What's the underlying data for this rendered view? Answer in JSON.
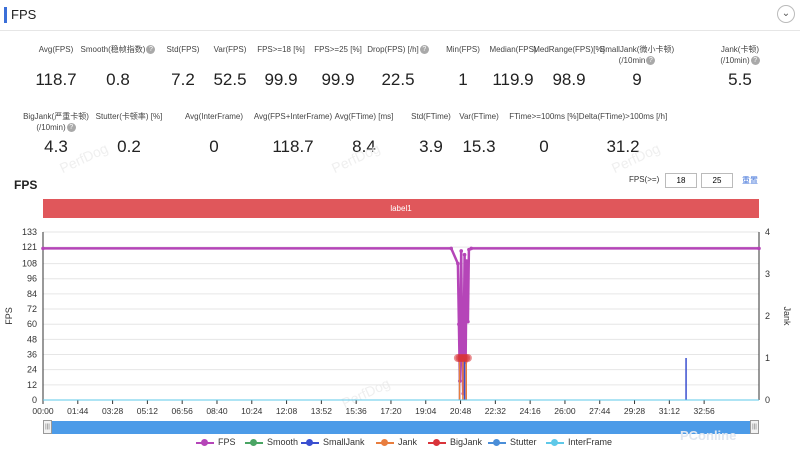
{
  "header": {
    "title": "FPS"
  },
  "metrics_row1": [
    {
      "label": "Avg(FPS)",
      "value": "118.7"
    },
    {
      "label": "Smooth(稳帧指数)",
      "value": "0.8",
      "help": true
    },
    {
      "label": "Std(FPS)",
      "value": "7.2"
    },
    {
      "label": "Var(FPS)",
      "value": "52.5"
    },
    {
      "label": "FPS>=18 [%]",
      "value": "99.9"
    },
    {
      "label": "FPS>=25 [%]",
      "value": "99.9"
    },
    {
      "label": "Drop(FPS) [/h]",
      "value": "22.5",
      "help": true
    },
    {
      "label": "Min(FPS)",
      "value": "1"
    },
    {
      "label": "Median(FPS)",
      "value": "119.9"
    },
    {
      "label": "MedRange(FPS)[%]",
      "value": "98.9"
    },
    {
      "label": "SmallJank(微小卡顿)",
      "label2": "(/10min",
      "value": "9",
      "help": true
    },
    {
      "label": "Jank(卡顿)",
      "label2": "(/10min)",
      "value": "5.5",
      "help": true
    }
  ],
  "metrics_row2": [
    {
      "label": "BigJank(严重卡顿)",
      "label2": "(/10min)",
      "value": "4.3",
      "help": true
    },
    {
      "label": "Stutter(卡顿率) [%]",
      "value": "0.2"
    },
    {
      "label": "Avg(InterFrame)",
      "value": "0"
    },
    {
      "label": "Avg(FPS+InterFrame)",
      "value": "118.7"
    },
    {
      "label": "Avg(FTime) [ms]",
      "value": "8.4"
    },
    {
      "label": "Std(FTime)",
      "value": "3.9"
    },
    {
      "label": "Var(FTime)",
      "value": "15.3"
    },
    {
      "label": "FTime>=100ms [%]",
      "value": "0"
    },
    {
      "label": "Delta(FTime)>100ms [/h]",
      "value": "31.2"
    }
  ],
  "watermarks": [
    "PerfDog",
    "PerfDog",
    "PerfDog",
    "PerfDog"
  ],
  "chart_header": {
    "title": "FPS",
    "threshold_label": "FPS(>=)",
    "threshold1": "18",
    "threshold2": "25",
    "reset_label": "重置",
    "reset_color": "#3b6fd8"
  },
  "banner": {
    "label": "label1",
    "color": "#e0575b"
  },
  "chart_data": {
    "type": "line",
    "ylabel": "FPS",
    "y2label": "Jank",
    "ylim": [
      0,
      133
    ],
    "y2lim": [
      0,
      4
    ],
    "yticks": [
      0,
      12,
      24,
      36,
      48,
      60,
      72,
      84,
      96,
      108,
      121,
      133
    ],
    "y2ticks": [
      0,
      1,
      2,
      3,
      4
    ],
    "xticks": [
      "00:00",
      "01:44",
      "03:28",
      "05:12",
      "06:56",
      "08:40",
      "10:24",
      "12:08",
      "13:52",
      "15:36",
      "17:20",
      "19:04",
      "20:48",
      "22:32",
      "24:16",
      "26:00",
      "27:44",
      "29:28",
      "31:12",
      "32:56"
    ],
    "x_unit_seconds": [
      0,
      104,
      208,
      312,
      416,
      520,
      624,
      728,
      832,
      936,
      1040,
      1144,
      1248,
      1352,
      1456,
      1560,
      1664,
      1768,
      1872,
      1976
    ],
    "x_end_seconds": 2140,
    "series": [
      {
        "name": "FPS",
        "color": "#b545b8",
        "axis": "left",
        "x": [
          0,
          1220,
          1240,
          1243,
          1246,
          1250,
          1253,
          1256,
          1260,
          1263,
          1266,
          1270,
          1273,
          1280,
          2140
        ],
        "y": [
          120,
          120,
          108,
          60,
          15,
          118,
          40,
          5,
          115,
          30,
          110,
          62,
          119,
          120,
          120
        ]
      },
      {
        "name": "Smooth",
        "color": "#4aa564",
        "axis": "left",
        "x": [
          0,
          2140
        ],
        "y": [
          0,
          0
        ]
      },
      {
        "name": "SmallJank",
        "color": "#3a4fd0",
        "axis": "right",
        "x": [
          0,
          1240,
          1245,
          1250,
          1260,
          1270,
          1275,
          1920,
          1922,
          1924,
          2140
        ],
        "y": [
          0,
          0,
          1,
          0,
          1,
          0,
          0,
          0,
          1,
          0,
          0
        ]
      },
      {
        "name": "Jank",
        "color": "#e87d3e",
        "axis": "right",
        "x": [
          0,
          1240,
          1245,
          1250,
          1255,
          1260,
          1265,
          1270,
          1275,
          2140
        ],
        "y": [
          0,
          0,
          1,
          0,
          1,
          0,
          1,
          0,
          0,
          0
        ]
      },
      {
        "name": "BigJank",
        "color": "#d9343a",
        "axis": "right",
        "x": [
          1240,
          1245,
          1250,
          1255,
          1260,
          1265,
          1270
        ],
        "y": [
          1,
          1,
          1,
          1,
          1,
          1,
          1
        ]
      },
      {
        "name": "Stutter",
        "color": "#4a8ed8",
        "axis": "right",
        "x": [
          0,
          2140
        ],
        "y": [
          0,
          0
        ]
      },
      {
        "name": "InterFrame",
        "color": "#5ec8e8",
        "axis": "left",
        "x": [
          0,
          2140
        ],
        "y": [
          0,
          0
        ]
      }
    ],
    "legend_position": "bottom"
  },
  "legend": [
    {
      "name": "FPS",
      "color": "#b545b8"
    },
    {
      "name": "Smooth",
      "color": "#4aa564"
    },
    {
      "name": "SmallJank",
      "color": "#3a4fd0"
    },
    {
      "name": "Jank",
      "color": "#e87d3e"
    },
    {
      "name": "BigJank",
      "color": "#d9343a"
    },
    {
      "name": "Stutter",
      "color": "#4a8ed8"
    },
    {
      "name": "InterFrame",
      "color": "#5ec8e8"
    }
  ],
  "slider": {
    "left_handle": "|||",
    "right_handle": "|||"
  },
  "footer_logo": "PConline"
}
